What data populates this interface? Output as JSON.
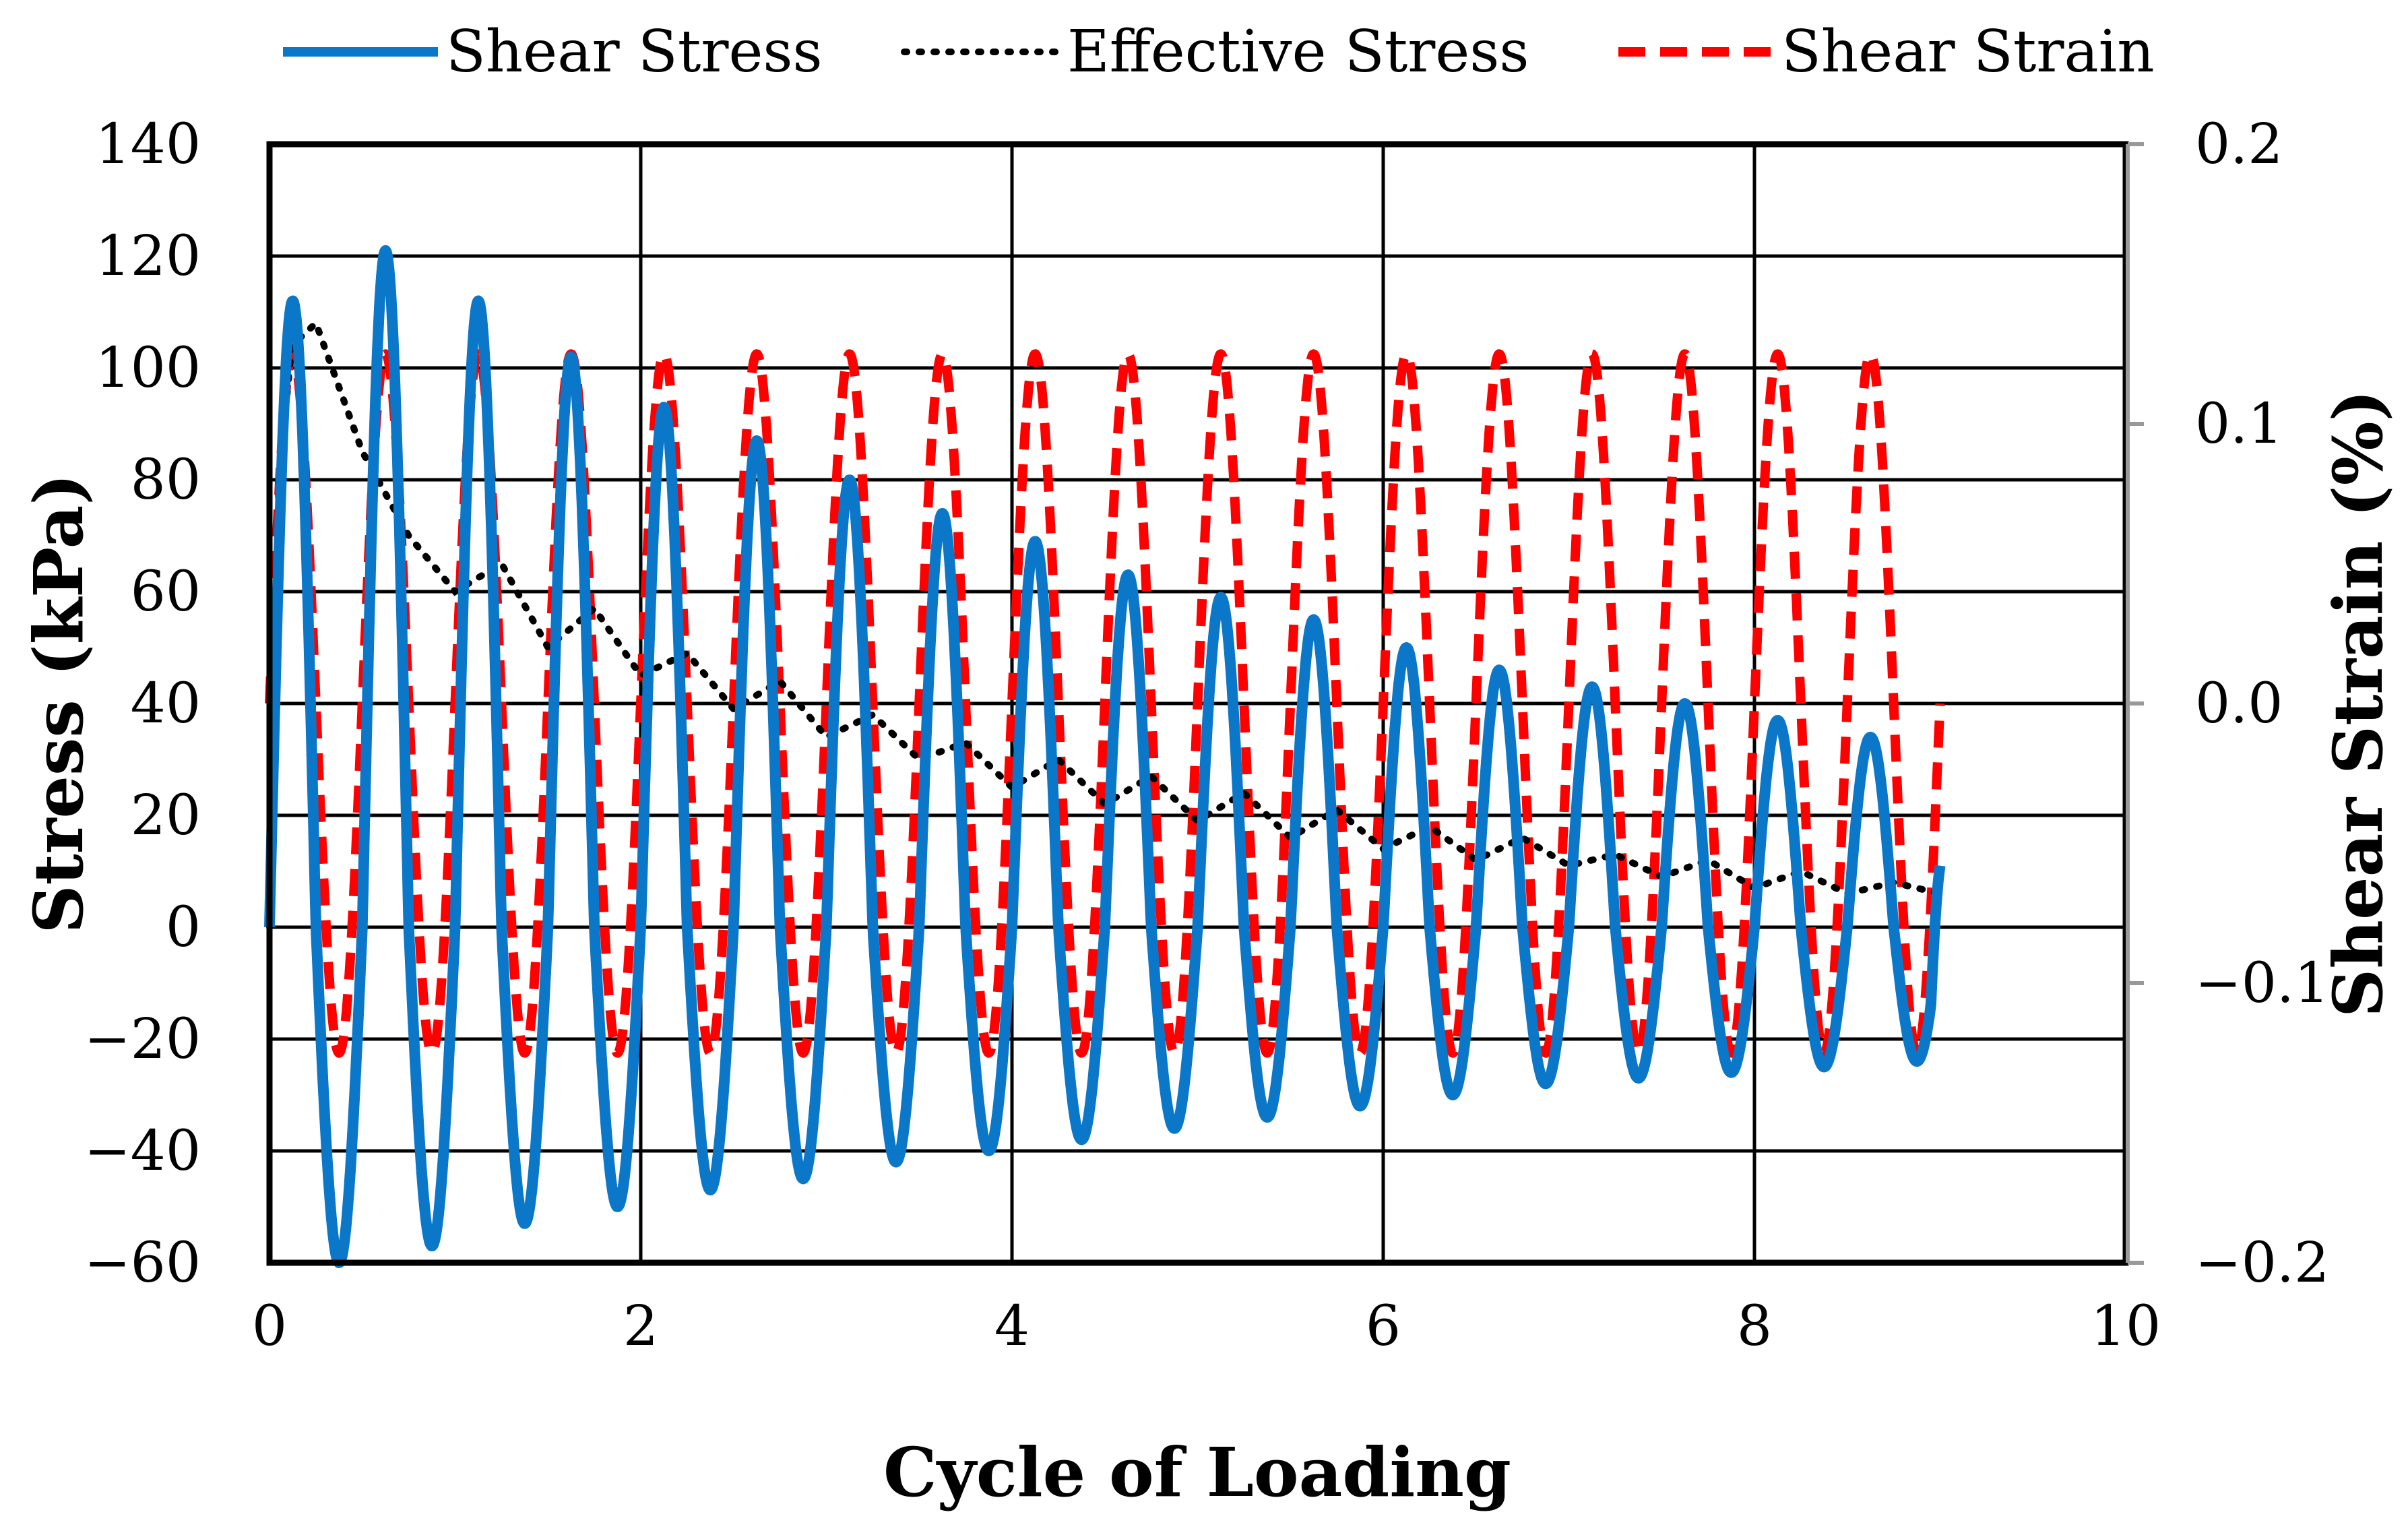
{
  "chart_data": {
    "type": "line",
    "title": "",
    "xlabel": "Cycle of Loading",
    "ylabel_left": "Stress (kPa)",
    "ylabel_right": "Shear Strain (%)",
    "xlim": [
      0,
      10
    ],
    "ylim_left": [
      -60,
      140
    ],
    "ylim_right": [
      -0.2,
      0.2
    ],
    "x_ticks": [
      "0",
      "2",
      "4",
      "6",
      "8",
      "10"
    ],
    "x_tick_values": [
      0,
      2,
      4,
      6,
      8,
      10
    ],
    "y_left_ticks": [
      "140",
      "120",
      "100",
      "80",
      "60",
      "40",
      "20",
      "0",
      "−20",
      "−40",
      "−60"
    ],
    "y_left_tick_values": [
      140,
      120,
      100,
      80,
      60,
      40,
      20,
      0,
      -20,
      -40,
      -60
    ],
    "y_right_ticks": [
      "0.2",
      "0.1",
      "0.0",
      "−0.1",
      "−0.2"
    ],
    "y_right_tick_values": [
      0.2,
      0.1,
      0.0,
      -0.1,
      -0.2
    ],
    "grid": true,
    "legend_position": "top",
    "colors": {
      "shear_stress": "#0a77c9",
      "effective_stress": "#000000",
      "shear_strain": "#ff0000"
    },
    "series": [
      {
        "name": "Shear Stress",
        "axis": "left",
        "style": "solid",
        "x_end": 9.0,
        "period": 0.5,
        "peaks": [
          112,
          121,
          112,
          102,
          93,
          87,
          80,
          74,
          69,
          63,
          59,
          55,
          50,
          46,
          43,
          40,
          37,
          34
        ],
        "troughs": [
          -60,
          -57,
          -53,
          -50,
          -47,
          -45,
          -42,
          -40,
          -38,
          -36,
          -34,
          -32,
          -30,
          -28,
          -27,
          -26,
          -25,
          -24
        ],
        "end_value": 11
      },
      {
        "name": "Effective Stress",
        "axis": "left",
        "style": "dotted",
        "points": [
          [
            0,
            0
          ],
          [
            0.05,
            80
          ],
          [
            0.12,
            104
          ],
          [
            0.25,
            108
          ],
          [
            0.5,
            85
          ],
          [
            0.75,
            70
          ],
          [
            1.0,
            60
          ],
          [
            1.25,
            65
          ],
          [
            1.5,
            50
          ],
          [
            1.75,
            57
          ],
          [
            2.0,
            45
          ],
          [
            2.25,
            49
          ],
          [
            2.5,
            39
          ],
          [
            2.75,
            44
          ],
          [
            3.0,
            34
          ],
          [
            3.25,
            38
          ],
          [
            3.5,
            30
          ],
          [
            3.75,
            33
          ],
          [
            4.0,
            25
          ],
          [
            4.25,
            30
          ],
          [
            4.5,
            22
          ],
          [
            4.75,
            27
          ],
          [
            5.0,
            19
          ],
          [
            5.25,
            24
          ],
          [
            5.5,
            16
          ],
          [
            5.75,
            21
          ],
          [
            6.0,
            14
          ],
          [
            6.25,
            18
          ],
          [
            6.5,
            12
          ],
          [
            6.75,
            16
          ],
          [
            7.0,
            11
          ],
          [
            7.25,
            13
          ],
          [
            7.5,
            9
          ],
          [
            7.75,
            12
          ],
          [
            8.0,
            7
          ],
          [
            8.25,
            10
          ],
          [
            8.5,
            6
          ],
          [
            8.75,
            8
          ],
          [
            9.0,
            6
          ]
        ]
      },
      {
        "name": "Shear Strain",
        "axis": "right",
        "style": "dashed",
        "x_end": 9.0,
        "period": 0.5,
        "amplitude_max": 0.125,
        "amplitude_min": -0.125,
        "end_value": 0.0
      }
    ]
  }
}
